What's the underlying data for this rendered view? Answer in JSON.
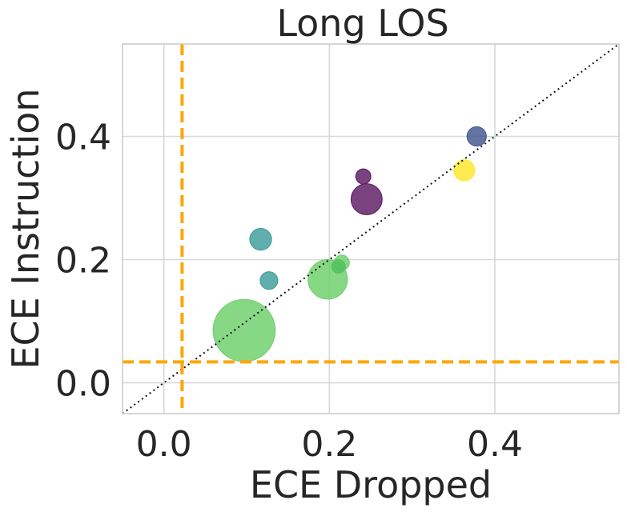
{
  "chart_data": {
    "type": "scatter",
    "title": "Long LOS",
    "xlabel": "ECE Dropped",
    "ylabel": "ECE Instruction",
    "xlim": [
      -0.05,
      0.55
    ],
    "ylim": [
      -0.05,
      0.55
    ],
    "xticks": [
      0.0,
      0.2,
      0.4
    ],
    "yticks": [
      0.0,
      0.2,
      0.4
    ],
    "xtick_labels": [
      "0.0",
      "0.2",
      "0.4"
    ],
    "ytick_labels": [
      "0.0",
      "0.2",
      "0.4"
    ],
    "grid": true,
    "points": [
      {
        "x": 0.097,
        "y": 0.085,
        "size": 3.7,
        "color": "#6ccf6a"
      },
      {
        "x": 0.198,
        "y": 0.168,
        "size": 2.35,
        "color": "#6ccf6a"
      },
      {
        "x": 0.215,
        "y": 0.195,
        "size": 0.9,
        "color": "#6ccf6a"
      },
      {
        "x": 0.211,
        "y": 0.189,
        "size": 0.8,
        "color": "#4fc15e"
      },
      {
        "x": 0.117,
        "y": 0.233,
        "size": 1.3,
        "color": "#3d9e9a"
      },
      {
        "x": 0.127,
        "y": 0.166,
        "size": 1.05,
        "color": "#3d9e9a"
      },
      {
        "x": 0.245,
        "y": 0.298,
        "size": 1.85,
        "color": "#5c1a63"
      },
      {
        "x": 0.241,
        "y": 0.335,
        "size": 0.9,
        "color": "#5c1a63"
      },
      {
        "x": 0.378,
        "y": 0.4,
        "size": 1.15,
        "color": "#43558f"
      },
      {
        "x": 0.363,
        "y": 0.345,
        "size": 1.25,
        "color": "#fde72a"
      }
    ],
    "reference_lines": {
      "diagonal": {
        "style": "dotted",
        "color": "#111111"
      },
      "vertical_x": 0.022,
      "horizontal_y": 0.034,
      "threshold_color": "#ffa500"
    }
  }
}
